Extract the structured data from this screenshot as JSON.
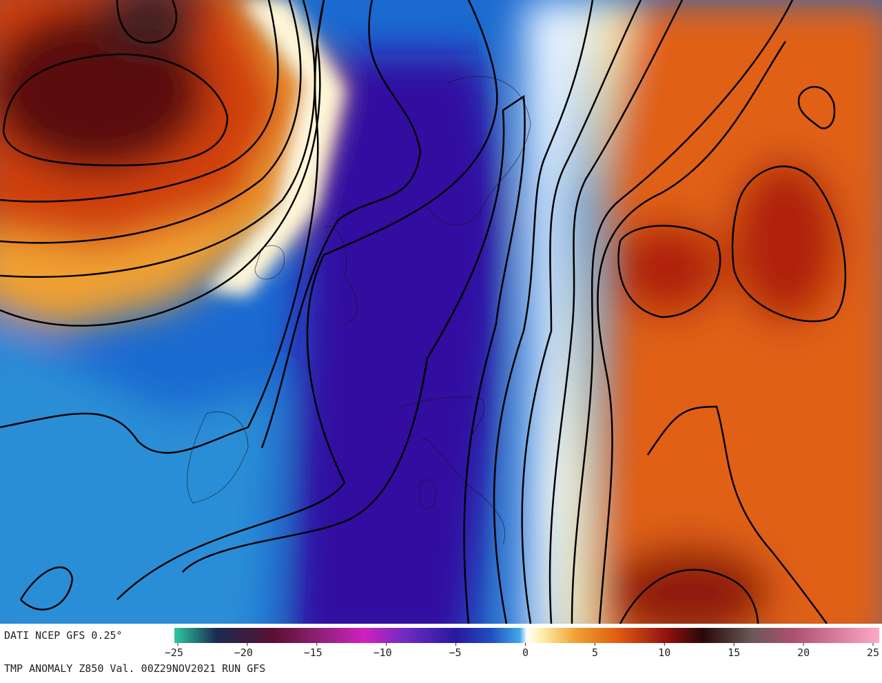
{
  "header": {
    "source": "DATI NCEP GFS 0.25°"
  },
  "colorbar": {
    "range": [
      -25,
      25
    ],
    "ticks": [
      {
        "value": -25,
        "label": "−25"
      },
      {
        "value": -20,
        "label": "−20"
      },
      {
        "value": -15,
        "label": "−15"
      },
      {
        "value": -10,
        "label": "−10"
      },
      {
        "value": -5,
        "label": "−5"
      },
      0,
      5,
      10,
      15,
      20,
      25
    ]
  },
  "footer": {
    "caption": "TMP ANOMALY Z850 Val. 00Z29NOV2021 RUN GFS"
  }
}
